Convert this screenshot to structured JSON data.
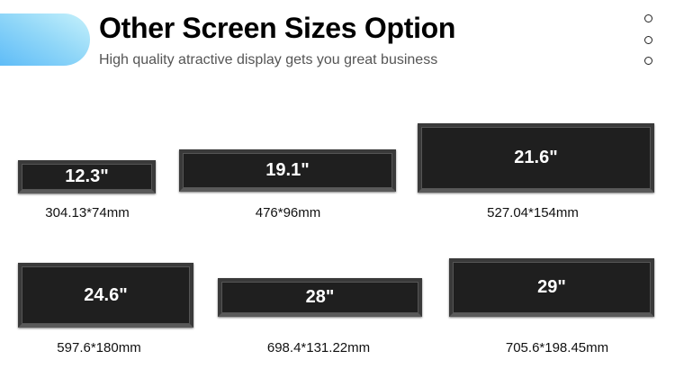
{
  "header": {
    "title": "Other Screen Sizes Option",
    "subtitle": "High quality atractive display gets you great business",
    "accent_color": "#5fbcf7"
  },
  "screens": [
    {
      "size": "12.3\"",
      "dimensions": "304.13*74mm"
    },
    {
      "size": "19.1\"",
      "dimensions": "476*96mm"
    },
    {
      "size": "21.6\"",
      "dimensions": "527.04*154mm"
    },
    {
      "size": "24.6\"",
      "dimensions": "597.6*180mm"
    },
    {
      "size": "28\"",
      "dimensions": "698.4*131.22mm"
    },
    {
      "size": "29\"",
      "dimensions": "705.6*198.45mm"
    }
  ]
}
